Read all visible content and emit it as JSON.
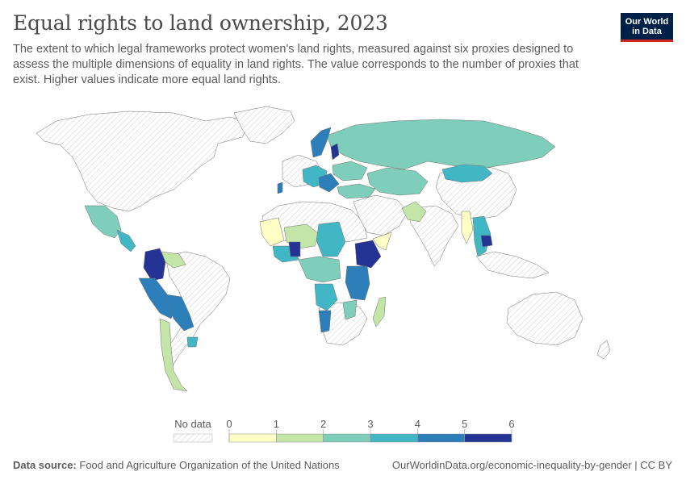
{
  "title": "Equal rights to land ownership, 2023",
  "subtitle": "The extent to which legal frameworks protect women's land rights, measured against six proxies designed to assess the multiple dimensions of equality in land rights. The value corresponds to the number of proxies that exist. Higher values indicate more equal land rights.",
  "logo": {
    "line1": "Our World",
    "line2": "in Data"
  },
  "legend": {
    "no_data_label": "No data",
    "ticks": [
      "0",
      "1",
      "2",
      "3",
      "4",
      "5",
      "6"
    ],
    "bins": [
      {
        "from": 0,
        "to": 1,
        "color": "#ffffc5"
      },
      {
        "from": 1,
        "to": 2,
        "color": "#c3e6a8"
      },
      {
        "from": 2,
        "to": 3,
        "color": "#7fcebb"
      },
      {
        "from": 3,
        "to": 4,
        "color": "#41b6c4"
      },
      {
        "from": 4,
        "to": 5,
        "color": "#2c7fb8"
      },
      {
        "from": 5,
        "to": 6,
        "color": "#253494"
      }
    ]
  },
  "colors": {
    "no_data_hatch": "#d9d9d9",
    "border": "#6e6e6e"
  },
  "footer": {
    "source_label": "Data source:",
    "source_value": "Food and Agriculture Organization of the United Nations",
    "url": "OurWorldinData.org/economic-inequality-by-gender | CC BY"
  }
}
